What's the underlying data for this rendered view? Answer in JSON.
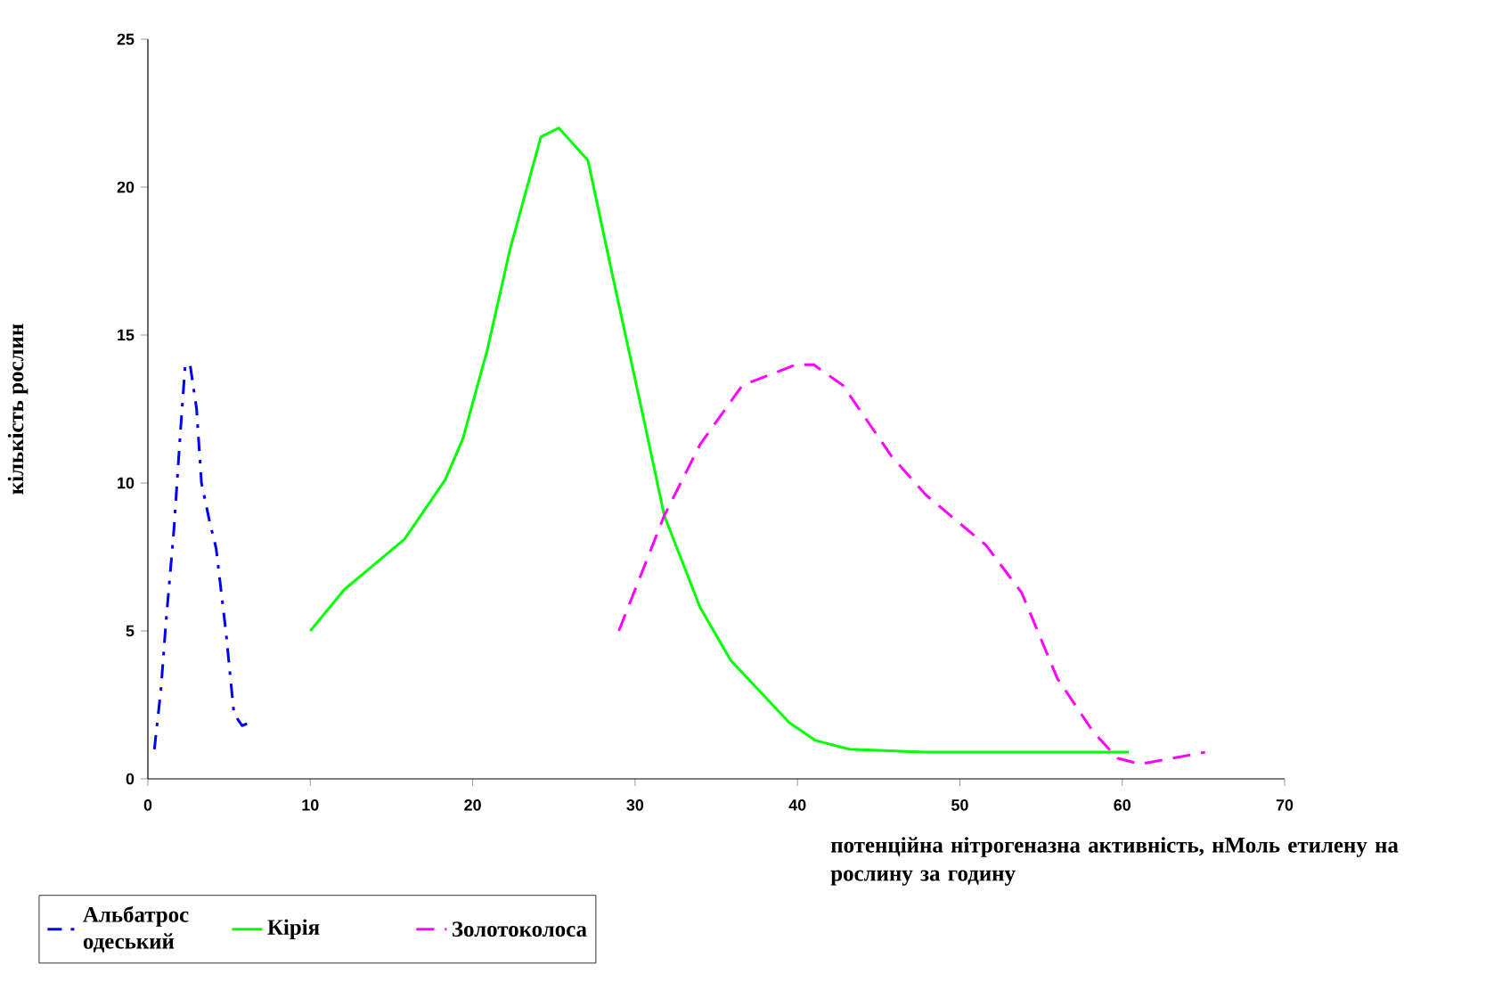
{
  "chart_data": {
    "type": "line",
    "xlabel": "потенційна нітрогеназна активність, нМоль етилену на рослину за годину",
    "ylabel": "кількість рослин",
    "xlim": [
      0,
      70
    ],
    "xticks": [
      0,
      10,
      20,
      30,
      40,
      50,
      60,
      70
    ],
    "ylim": [
      0,
      25
    ],
    "yticks": [
      0,
      5,
      10,
      15,
      20,
      25
    ],
    "legend": "bottom left",
    "series": [
      {
        "name": "Альбатрос одеський",
        "color": "#0000ff",
        "line_style": "dashdot",
        "x": [
          0.4,
          0.8,
          1.1,
          1.6,
          2.0,
          2.3,
          2.6,
          3.0,
          3.3,
          3.8,
          4.2,
          4.8,
          5.3,
          5.8,
          6.3
        ],
        "values": [
          1.0,
          3.0,
          5.2,
          8.4,
          11.7,
          14.0,
          14.0,
          12.5,
          10.0,
          8.7,
          7.8,
          5.0,
          2.2,
          1.8,
          1.9
        ]
      },
      {
        "name": "Кірія",
        "color": "#00ff00",
        "line_style": "solid",
        "x": [
          10,
          12.1,
          15.8,
          18.3,
          19.4,
          20.9,
          22.3,
          24.2,
          25.3,
          27.1,
          28.5,
          30.4,
          31.8,
          34.0,
          35.9,
          39.5,
          41.1,
          43.2,
          47.9,
          53.4,
          60.4
        ],
        "values": [
          5.0,
          6.4,
          8.1,
          10.1,
          11.5,
          14.5,
          17.9,
          21.7,
          22.0,
          20.9,
          17.3,
          12.5,
          8.9,
          5.8,
          4.0,
          1.9,
          1.3,
          1.0,
          0.9,
          0.9,
          0.9
        ]
      },
      {
        "name": "Золотоколоса",
        "color": "#ff00ff",
        "line_style": "dashed",
        "x": [
          29,
          31.8,
          34,
          36.6,
          39.9,
          41,
          42.8,
          45.8,
          47.9,
          51.6,
          53.8,
          56,
          58.2,
          59.7,
          61.1,
          65.1
        ],
        "values": [
          5.0,
          8.9,
          11.3,
          13.3,
          14.0,
          14.0,
          13.3,
          10.9,
          9.6,
          7.9,
          6.3,
          3.4,
          1.6,
          0.7,
          0.5,
          0.9
        ]
      }
    ]
  }
}
